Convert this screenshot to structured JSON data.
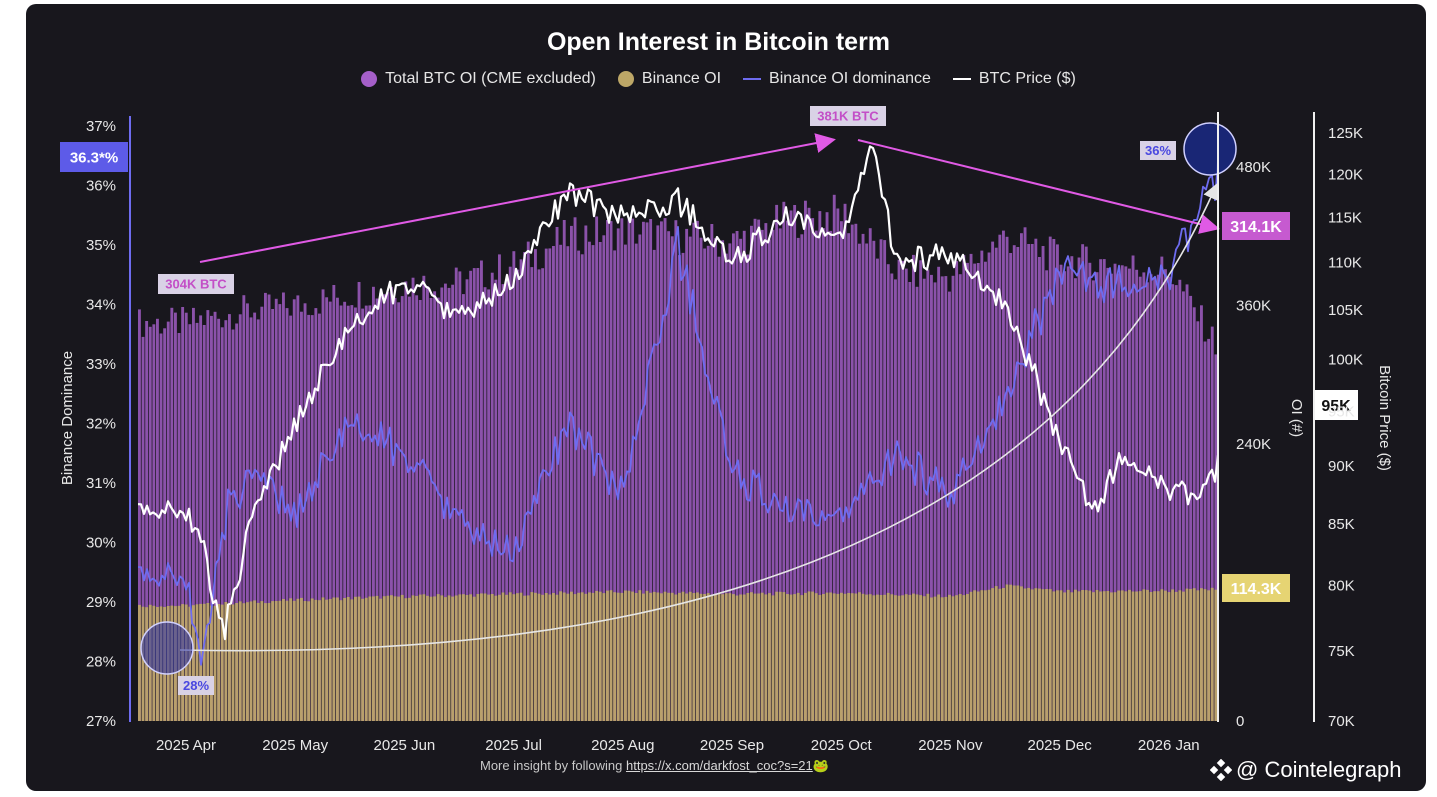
{
  "page": {
    "watermark": "@ Cointelegraph"
  },
  "legend": [
    {
      "label": "Total BTC OI (CME excluded)",
      "color": "#a55fc9",
      "kind": "dot"
    },
    {
      "label": "Binance OI",
      "color": "#bda767",
      "kind": "dot"
    },
    {
      "label": "Binance OI dominance",
      "color": "#6e6cf0",
      "kind": "line"
    },
    {
      "label": "BTC Price ($)",
      "color": "#ffffff",
      "kind": "line"
    }
  ],
  "footer": {
    "text": "More insight by following",
    "link": "https://x.com/darkfost_coc?s=21",
    "emoji": "🐸"
  },
  "chart_data": {
    "type": "bar",
    "title": "Open Interest in Bitcoin term",
    "x_labels": [
      "2025 Apr",
      "2025 May",
      "2025 Jun",
      "2025 Jul",
      "2025 Aug",
      "2025 Sep",
      "2025 Oct",
      "2025 Nov",
      "2025 Dec",
      "2026 Jan"
    ],
    "axes": {
      "dominance": {
        "title": "Binance Dominance",
        "range": [
          27,
          37
        ],
        "ticks": [
          "27%",
          "28%",
          "29%",
          "30%",
          "31%",
          "32%",
          "33%",
          "34%",
          "35%",
          "36%",
          "37%"
        ]
      },
      "oi": {
        "title": "OI (#)",
        "range": [
          0,
          480000
        ],
        "ticks": [
          "0",
          "240K",
          "360K",
          "480K"
        ]
      },
      "price": {
        "title": "Bitcoin Price ($)",
        "range": [
          70000,
          125000
        ],
        "scale": "log",
        "ticks": [
          "70K",
          "75K",
          "80K",
          "85K",
          "90K",
          "95K",
          "100K",
          "105K",
          "110K",
          "115K",
          "120K",
          "125K"
        ]
      }
    },
    "series": [
      {
        "name": "Total BTC OI (CME excluded)",
        "color": "#a55fc9",
        "points": [
          [
            0,
            345000
          ],
          [
            0.5,
            355000
          ],
          [
            1,
            360000
          ],
          [
            1.5,
            370000
          ],
          [
            2,
            378000
          ],
          [
            2.5,
            380000
          ],
          [
            3,
            395000
          ],
          [
            3.5,
            420000
          ],
          [
            4,
            425000
          ],
          [
            4.5,
            420000
          ],
          [
            5,
            415000
          ],
          [
            5.5,
            435000
          ],
          [
            6,
            440000
          ],
          [
            6.5,
            390000
          ],
          [
            7,
            385000
          ],
          [
            7.5,
            420000
          ],
          [
            8,
            400000
          ],
          [
            8.5,
            395000
          ],
          [
            9,
            390000
          ],
          [
            9.5,
            314100
          ]
        ]
      },
      {
        "name": "Binance OI",
        "color": "#bda767",
        "points": [
          [
            0,
            100000
          ],
          [
            1,
            105000
          ],
          [
            2,
            108000
          ],
          [
            3,
            110000
          ],
          [
            4,
            112000
          ],
          [
            5,
            110000
          ],
          [
            6,
            111000
          ],
          [
            7,
            108000
          ],
          [
            7.5,
            117000
          ],
          [
            8,
            112000
          ],
          [
            9,
            113000
          ],
          [
            9.5,
            114300
          ]
        ]
      },
      {
        "name": "Binance OI dominance",
        "color": "#6e6cf0",
        "points": [
          [
            0,
            29.4
          ],
          [
            0.15,
            28.0
          ],
          [
            0.4,
            30.8
          ],
          [
            0.7,
            31.0
          ],
          [
            1,
            30.5
          ],
          [
            1.5,
            32.0
          ],
          [
            2,
            31.5
          ],
          [
            2.5,
            30.3
          ],
          [
            3,
            29.8
          ],
          [
            3.5,
            32.0
          ],
          [
            4,
            30.8
          ],
          [
            4.5,
            35.0
          ],
          [
            5,
            31.2
          ],
          [
            5.5,
            30.5
          ],
          [
            6,
            30.3
          ],
          [
            6.5,
            31.5
          ],
          [
            7,
            30.8
          ],
          [
            7.5,
            32.5
          ],
          [
            8,
            34.5
          ],
          [
            8.5,
            34.3
          ],
          [
            9,
            34.5
          ],
          [
            9.5,
            36.3
          ]
        ]
      },
      {
        "name": "BTC Price ($)",
        "color": "#ffffff",
        "points": [
          [
            0,
            86000
          ],
          [
            0.15,
            84000
          ],
          [
            0.25,
            78500
          ],
          [
            0.35,
            76500
          ],
          [
            0.6,
            85000
          ],
          [
            1,
            94000
          ],
          [
            1.5,
            103000
          ],
          [
            2,
            108000
          ],
          [
            2.5,
            104000
          ],
          [
            3,
            108000
          ],
          [
            3.5,
            118000
          ],
          [
            4,
            115000
          ],
          [
            4.5,
            117000
          ],
          [
            5,
            110000
          ],
          [
            5.5,
            115000
          ],
          [
            6,
            112000
          ],
          [
            6.3,
            123500
          ],
          [
            6.5,
            110000
          ],
          [
            7,
            111000
          ],
          [
            7.5,
            106000
          ],
          [
            8,
            92000
          ],
          [
            8.3,
            86000
          ],
          [
            8.6,
            91000
          ],
          [
            9,
            88000
          ],
          [
            9.3,
            87000
          ],
          [
            9.6,
            93000
          ],
          [
            9.85,
            95000
          ]
        ]
      }
    ],
    "annotations": [
      {
        "text": "304K BTC",
        "color": "#c34fc7"
      },
      {
        "text": "381K BTC",
        "color": "#c34fc7"
      },
      {
        "text": "36%",
        "color": "#4a48e0"
      },
      {
        "text": "28%",
        "color": "#4a48e0"
      },
      {
        "text": "314.1K",
        "color": "#c34fc7"
      },
      {
        "text": "114.3K",
        "color": "#e0cf6a"
      },
      {
        "text": "95K",
        "color": "#ffffff"
      },
      {
        "text": "36.3*%",
        "color": "#5d5be8"
      }
    ],
    "grid": false,
    "legend_position": "top"
  }
}
